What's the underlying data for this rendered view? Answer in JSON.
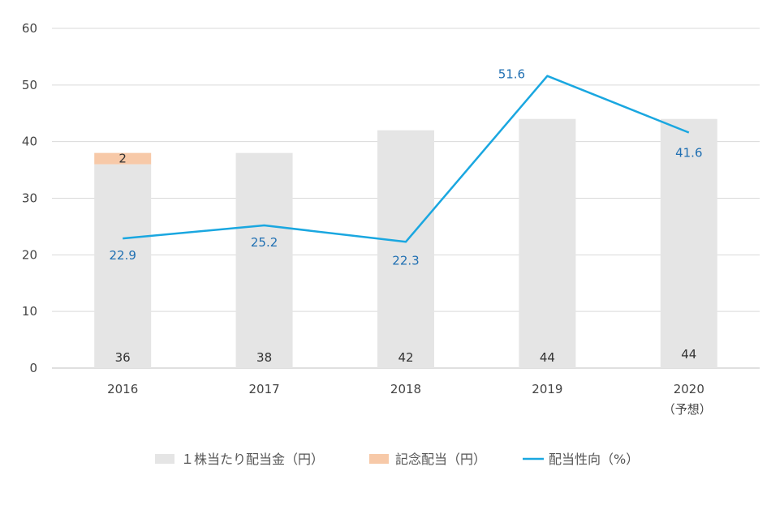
{
  "chart_data": {
    "type": "bar",
    "categories": [
      "2016",
      "2017",
      "2018",
      "2019",
      "2020"
    ],
    "category_sublabels": [
      "",
      "",
      "",
      "",
      "（予想）"
    ],
    "ylim": [
      0,
      60
    ],
    "yticks": [
      0,
      10,
      20,
      30,
      40,
      50,
      60
    ],
    "grid": true,
    "legend_position": "bottom",
    "series": [
      {
        "name": "１株当たり配当金（円）",
        "type": "bar",
        "stack": "dividend",
        "color": "#e5e5e5",
        "values": [
          36,
          38,
          42,
          44,
          44
        ]
      },
      {
        "name": "記念配当（円）",
        "type": "bar",
        "stack": "dividend",
        "color": "#f7c9a8",
        "values": [
          2,
          null,
          null,
          null,
          null
        ]
      },
      {
        "name": "配当性向（%）",
        "type": "line",
        "color": "#1aa7e0",
        "values": [
          22.9,
          25.2,
          22.3,
          51.6,
          41.6
        ]
      }
    ],
    "data_labels": {
      "base_bar": [
        "36",
        "38",
        "42",
        "44",
        "44"
      ],
      "commemorative_bar": [
        "2",
        "",
        "",
        "",
        ""
      ],
      "line": [
        "22.9",
        "25.2",
        "22.3",
        "51.6",
        "41.6"
      ]
    }
  }
}
